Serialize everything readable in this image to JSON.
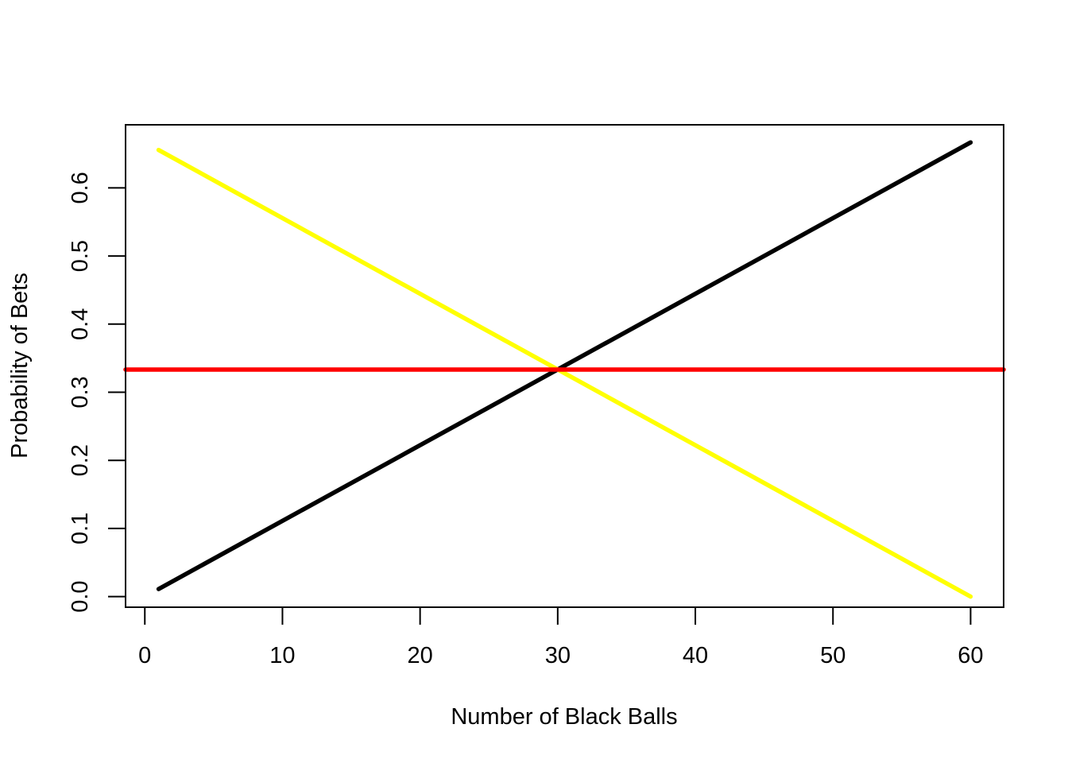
{
  "chart_data": {
    "type": "line",
    "title": "",
    "xlabel": "Number of Black Balls",
    "ylabel": "Probability of Bets",
    "xlim": [
      -1.4,
      62.4
    ],
    "ylim": [
      -0.0156,
      0.6926
    ],
    "x_ticks": [
      0,
      10,
      20,
      30,
      40,
      50,
      60
    ],
    "x_tick_labels": [
      "0",
      "10",
      "20",
      "30",
      "40",
      "50",
      "60"
    ],
    "y_ticks": [
      0.0,
      0.1,
      0.2,
      0.3,
      0.4,
      0.5,
      0.6
    ],
    "y_tick_labels": [
      "0.0",
      "0.1",
      "0.2",
      "0.3",
      "0.4",
      "0.5",
      "0.6"
    ],
    "grid": false,
    "legend": "none",
    "series": [
      {
        "color": "#000000",
        "x": [
          1,
          60
        ],
        "y": [
          0.0111,
          0.6667
        ]
      },
      {
        "color": "#ffff00",
        "x": [
          1,
          60
        ],
        "y": [
          0.6556,
          0.0
        ]
      },
      {
        "color": "#ff0000",
        "x": [
          -1.4,
          62.4
        ],
        "y": [
          0.3333,
          0.3333
        ]
      }
    ]
  }
}
